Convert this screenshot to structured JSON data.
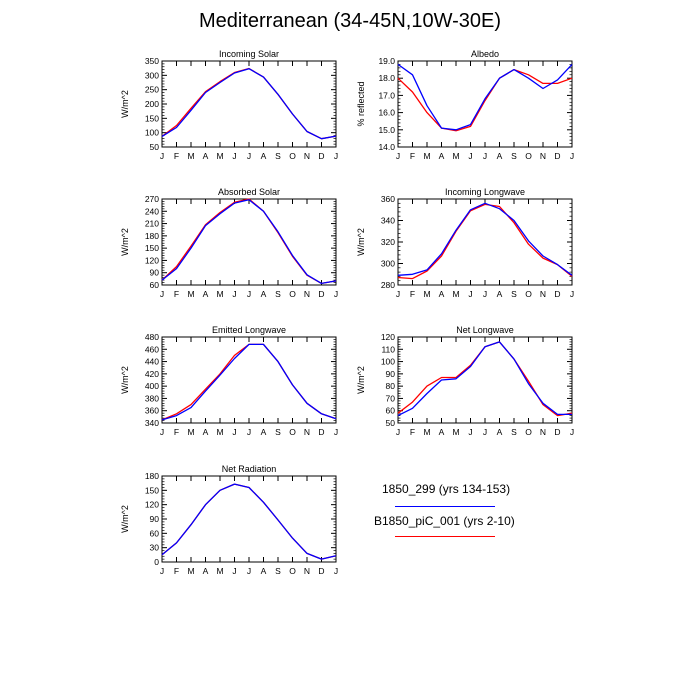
{
  "title": "Mediterranean (34-45N,10W-30E)",
  "legend": {
    "entries": [
      {
        "label": "1850_299 (yrs 134-153)",
        "color": "#0000ff"
      },
      {
        "label": "B1850_piC_001 (yrs 2-10)",
        "color": "#ff0000"
      }
    ]
  },
  "chart_data": [
    {
      "type": "line",
      "title": "Incoming Solar",
      "ylabel": "W/m^2",
      "x": [
        "J",
        "F",
        "M",
        "A",
        "M",
        "J",
        "J",
        "A",
        "S",
        "O",
        "N",
        "D",
        "J"
      ],
      "ylim": [
        50,
        350
      ],
      "yticks": [
        50,
        100,
        150,
        200,
        250,
        300,
        350
      ],
      "series": [
        {
          "name": "1850_299 (yrs 134-153)",
          "color": "#0000ff",
          "values": [
            87,
            118,
            178,
            240,
            275,
            308,
            323,
            294,
            234,
            165,
            104,
            79,
            88
          ]
        },
        {
          "name": "B1850_piC_001 (yrs 2-10)",
          "color": "#ff0000",
          "values": [
            87,
            125,
            185,
            243,
            278,
            310,
            324,
            294,
            233,
            165,
            104,
            79,
            88
          ]
        }
      ]
    },
    {
      "type": "line",
      "title": "Albedo",
      "ylabel": "% reflected",
      "x": [
        "J",
        "F",
        "M",
        "A",
        "M",
        "J",
        "J",
        "A",
        "S",
        "O",
        "N",
        "D",
        "J"
      ],
      "ylim": [
        14.0,
        19.0
      ],
      "yticks": [
        "14.0",
        "15.0",
        "16.0",
        "17.0",
        "18.0",
        "19.0"
      ],
      "series": [
        {
          "name": "1850_299 (yrs 134-153)",
          "color": "#0000ff",
          "values": [
            18.8,
            18.2,
            16.4,
            15.1,
            15.0,
            15.3,
            16.8,
            18.0,
            18.5,
            18.0,
            17.4,
            17.9,
            18.8
          ]
        },
        {
          "name": "B1850_piC_001 (yrs 2-10)",
          "color": "#ff0000",
          "values": [
            18.0,
            17.2,
            16.0,
            15.1,
            14.95,
            15.2,
            16.7,
            18.0,
            18.5,
            18.2,
            17.7,
            17.7,
            18.0
          ]
        }
      ]
    },
    {
      "type": "line",
      "title": "Absorbed Solar",
      "ylabel": "W/m^2",
      "x": [
        "J",
        "F",
        "M",
        "A",
        "M",
        "J",
        "J",
        "A",
        "S",
        "O",
        "N",
        "D",
        "J"
      ],
      "ylim": [
        60,
        270
      ],
      "yticks": [
        60,
        90,
        120,
        150,
        180,
        210,
        240,
        270
      ],
      "series": [
        {
          "name": "1850_299 (yrs 134-153)",
          "color": "#0000ff",
          "values": [
            72,
            100,
            150,
            205,
            234,
            260,
            268,
            240,
            190,
            132,
            85,
            64,
            70
          ]
        },
        {
          "name": "B1850_piC_001 (yrs 2-10)",
          "color": "#ff0000",
          "values": [
            72,
            105,
            155,
            207,
            237,
            262,
            270,
            240,
            188,
            130,
            84,
            64,
            70
          ]
        }
      ]
    },
    {
      "type": "line",
      "title": "Incoming Longwave",
      "ylabel": "W/m^2",
      "x": [
        "J",
        "F",
        "M",
        "A",
        "M",
        "J",
        "J",
        "A",
        "S",
        "O",
        "N",
        "D",
        "J"
      ],
      "ylim": [
        280,
        360
      ],
      "yticks": [
        280,
        300,
        320,
        340,
        360
      ],
      "series": [
        {
          "name": "1850_299 (yrs 134-153)",
          "color": "#0000ff",
          "values": [
            289,
            290,
            294,
            309,
            331,
            350,
            356,
            351,
            340,
            321,
            307,
            299,
            289
          ]
        },
        {
          "name": "B1850_piC_001 (yrs 2-10)",
          "color": "#ff0000",
          "values": [
            287,
            286,
            293,
            307,
            330,
            349,
            355,
            353,
            338,
            318,
            305,
            299,
            288
          ]
        }
      ]
    },
    {
      "type": "line",
      "title": "Emitted Longwave",
      "ylabel": "W/m^2",
      "x": [
        "J",
        "F",
        "M",
        "A",
        "M",
        "J",
        "J",
        "A",
        "S",
        "O",
        "N",
        "D",
        "J"
      ],
      "ylim": [
        340,
        480
      ],
      "yticks": [
        340,
        360,
        380,
        400,
        420,
        440,
        460,
        480
      ],
      "series": [
        {
          "name": "1850_299 (yrs 134-153)",
          "color": "#0000ff",
          "values": [
            345,
            352,
            365,
            392,
            418,
            445,
            468,
            468,
            440,
            402,
            372,
            355,
            347
          ]
        },
        {
          "name": "B1850_piC_001 (yrs 2-10)",
          "color": "#ff0000",
          "values": [
            345,
            355,
            370,
            395,
            420,
            450,
            468,
            468,
            440,
            402,
            372,
            355,
            347
          ]
        }
      ]
    },
    {
      "type": "line",
      "title": "Net Longwave",
      "ylabel": "W/m^2",
      "x": [
        "J",
        "F",
        "M",
        "A",
        "M",
        "J",
        "J",
        "A",
        "S",
        "O",
        "N",
        "D",
        "J"
      ],
      "ylim": [
        50,
        120
      ],
      "yticks": [
        50,
        60,
        70,
        80,
        90,
        100,
        110,
        120
      ],
      "series": [
        {
          "name": "1850_299 (yrs 134-153)",
          "color": "#0000ff",
          "values": [
            56,
            62,
            74,
            85,
            86,
            96,
            112,
            116,
            102,
            82,
            66,
            57,
            57
          ]
        },
        {
          "name": "B1850_piC_001 (yrs 2-10)",
          "color": "#ff0000",
          "values": [
            58,
            67,
            80,
            87,
            87,
            97,
            112,
            116,
            102,
            84,
            65,
            56,
            58
          ]
        }
      ]
    },
    {
      "type": "line",
      "title": "Net Radiation",
      "ylabel": "W/m^2",
      "x": [
        "J",
        "F",
        "M",
        "A",
        "M",
        "J",
        "J",
        "A",
        "S",
        "O",
        "N",
        "D",
        "J"
      ],
      "ylim": [
        0,
        180
      ],
      "yticks": [
        0,
        30,
        60,
        90,
        120,
        150,
        180
      ],
      "series": [
        {
          "name": "1850_299 (yrs 134-153)",
          "color": "#0000ff",
          "values": [
            15,
            40,
            78,
            120,
            150,
            163,
            156,
            125,
            88,
            50,
            18,
            6,
            13
          ]
        },
        {
          "name": "B1850_piC_001 (yrs 2-10)",
          "color": "#ff0000",
          "values": [
            15,
            40,
            78,
            120,
            150,
            163,
            156,
            125,
            88,
            50,
            18,
            6,
            13
          ]
        }
      ]
    }
  ]
}
